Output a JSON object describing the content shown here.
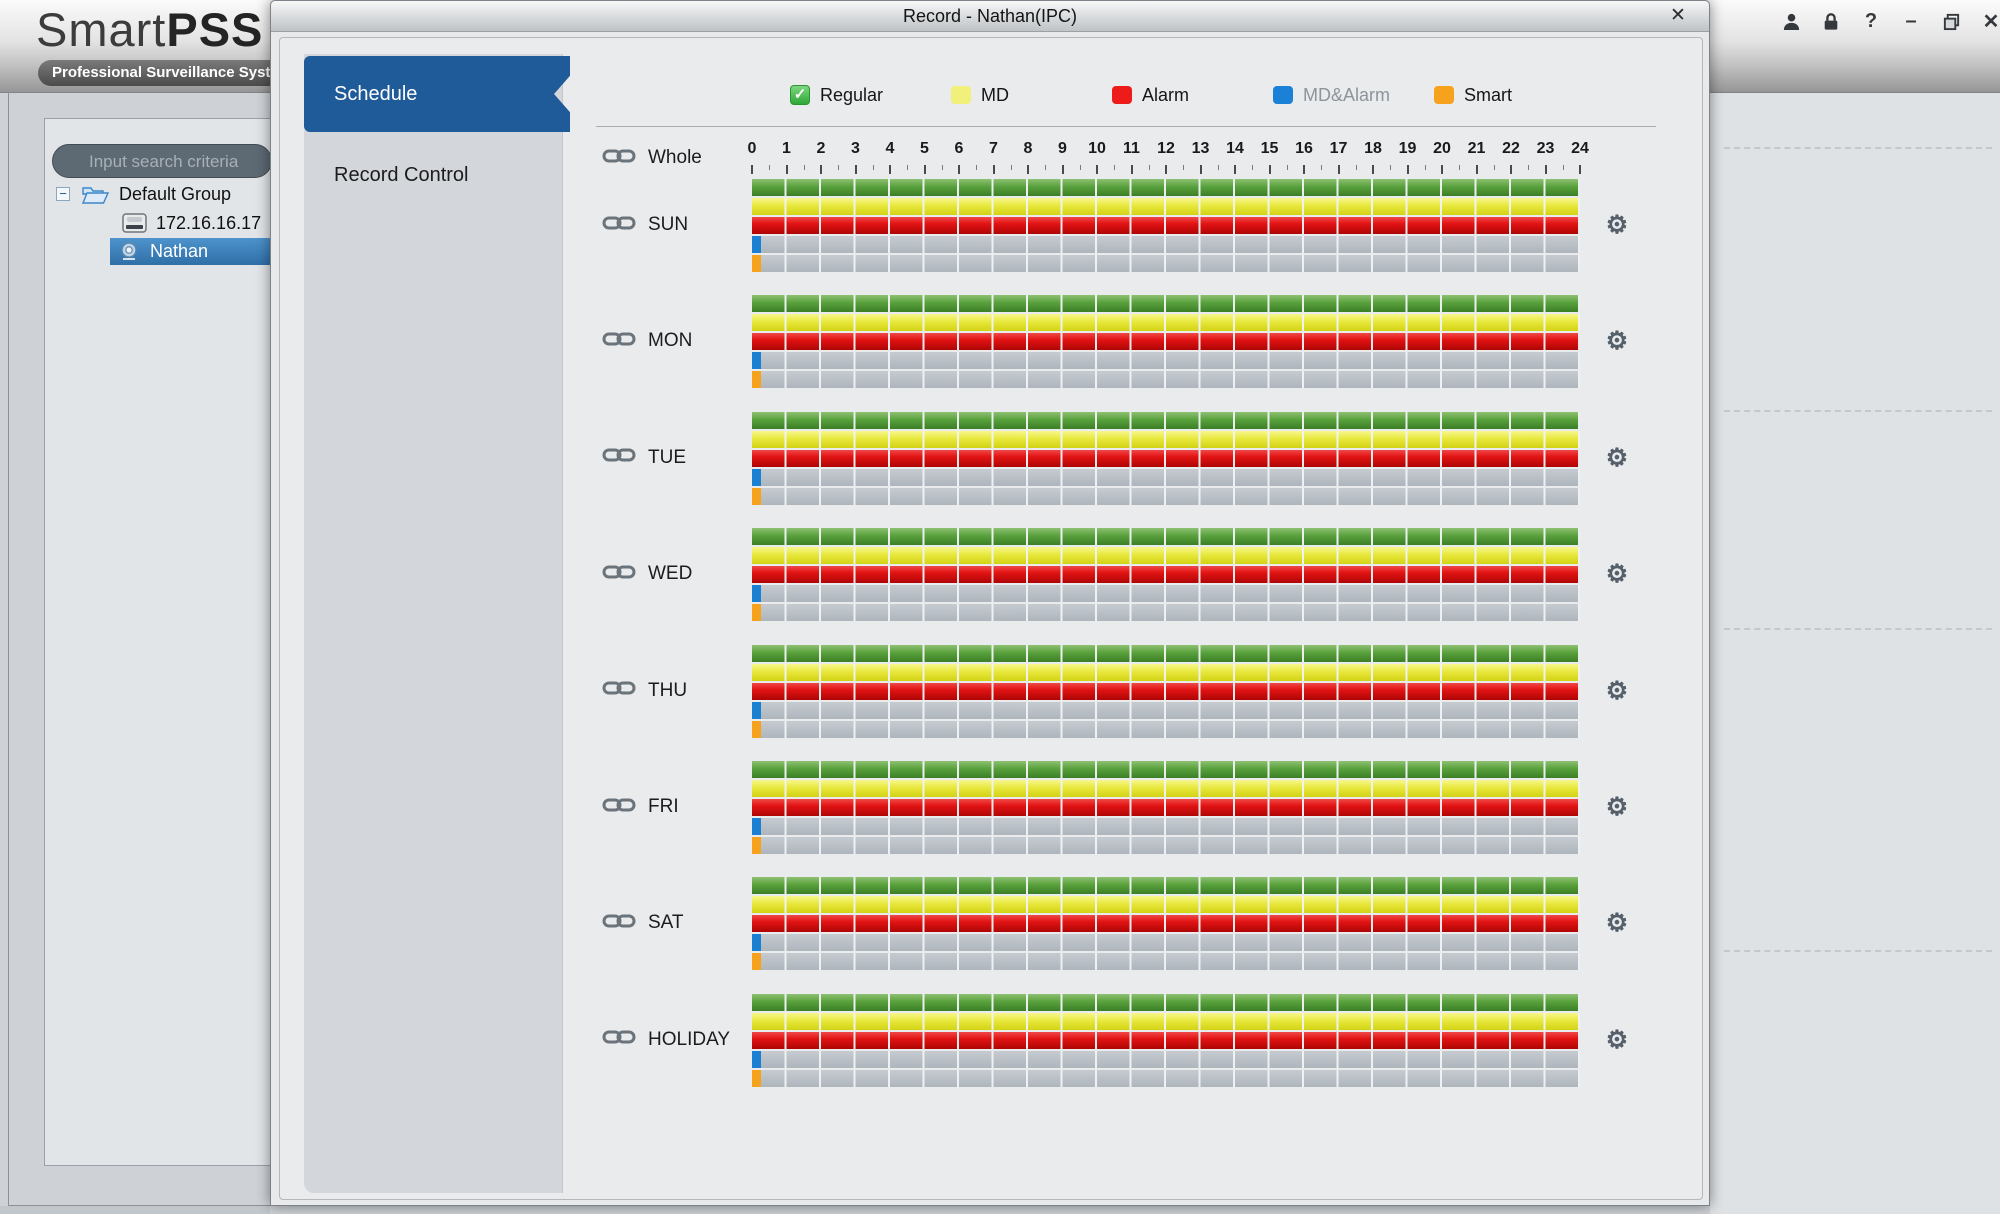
{
  "window": {
    "logo": {
      "brand_light": "Smart",
      "brand_bold": "PSS",
      "tagline": "Professional Surveillance Syst"
    },
    "controls": {
      "help_glyph": "?",
      "minimize_glyph": "–",
      "close_glyph": "✕"
    }
  },
  "sidebar": {
    "search_placeholder": "Input search criteria",
    "tree": {
      "group": "Default Group",
      "device": "172.16.16.17",
      "channel": "Nathan"
    }
  },
  "dialog": {
    "title": "Record - Nathan(IPC)",
    "close_glyph": "✕",
    "tabs": [
      {
        "label": "Schedule",
        "active": true
      },
      {
        "label": "Record Control",
        "active": false
      }
    ],
    "legend": [
      {
        "label": "Regular",
        "color": "#45b649",
        "checkbox": true,
        "check_glyph": "✓",
        "muted": false
      },
      {
        "label": "MD",
        "color": "#f0f07a",
        "checkbox": false,
        "muted": false
      },
      {
        "label": "Alarm",
        "color": "#ee1b1b",
        "checkbox": false,
        "muted": false
      },
      {
        "label": "MD&Alarm",
        "color": "#1b81d6",
        "checkbox": false,
        "muted": true
      },
      {
        "label": "Smart",
        "color": "#f6a21c",
        "checkbox": false,
        "muted": false
      }
    ],
    "timeline": {
      "whole_label": "Whole",
      "hours_start": 0,
      "hours_end": 24,
      "gear_glyph": "⚙",
      "track_order": [
        "regular",
        "md",
        "alarm",
        "md_alarm",
        "smart"
      ],
      "track_colors": {
        "regular": "#4e9437",
        "md": "#e0e02e",
        "alarm": "#d90f0f",
        "md_alarm": "#1b7fd2",
        "smart": "#f6a21c",
        "empty": "#b6bcc3"
      },
      "days": [
        {
          "label": "SUN",
          "regular": [
            [
              0,
              24
            ]
          ],
          "md": [
            [
              0,
              24
            ]
          ],
          "alarm": [
            [
              0,
              24
            ]
          ],
          "md_alarm": [
            [
              0,
              0.25
            ]
          ],
          "smart": [
            [
              0,
              0.25
            ]
          ]
        },
        {
          "label": "MON",
          "regular": [
            [
              0,
              24
            ]
          ],
          "md": [
            [
              0,
              24
            ]
          ],
          "alarm": [
            [
              0,
              24
            ]
          ],
          "md_alarm": [
            [
              0,
              0.25
            ]
          ],
          "smart": [
            [
              0,
              0.25
            ]
          ]
        },
        {
          "label": "TUE",
          "regular": [
            [
              0,
              24
            ]
          ],
          "md": [
            [
              0,
              24
            ]
          ],
          "alarm": [
            [
              0,
              24
            ]
          ],
          "md_alarm": [
            [
              0,
              0.25
            ]
          ],
          "smart": [
            [
              0,
              0.25
            ]
          ]
        },
        {
          "label": "WED",
          "regular": [
            [
              0,
              24
            ]
          ],
          "md": [
            [
              0,
              24
            ]
          ],
          "alarm": [
            [
              0,
              24
            ]
          ],
          "md_alarm": [
            [
              0,
              0.25
            ]
          ],
          "smart": [
            [
              0,
              0.25
            ]
          ]
        },
        {
          "label": "THU",
          "regular": [
            [
              0,
              24
            ]
          ],
          "md": [
            [
              0,
              24
            ]
          ],
          "alarm": [
            [
              0,
              24
            ]
          ],
          "md_alarm": [
            [
              0,
              0.25
            ]
          ],
          "smart": [
            [
              0,
              0.25
            ]
          ]
        },
        {
          "label": "FRI",
          "regular": [
            [
              0,
              24
            ]
          ],
          "md": [
            [
              0,
              24
            ]
          ],
          "alarm": [
            [
              0,
              24
            ]
          ],
          "md_alarm": [
            [
              0,
              0.25
            ]
          ],
          "smart": [
            [
              0,
              0.25
            ]
          ]
        },
        {
          "label": "SAT",
          "regular": [
            [
              0,
              24
            ]
          ],
          "md": [
            [
              0,
              24
            ]
          ],
          "alarm": [
            [
              0,
              24
            ]
          ],
          "md_alarm": [
            [
              0,
              0.25
            ]
          ],
          "smart": [
            [
              0,
              0.25
            ]
          ]
        },
        {
          "label": "HOLIDAY",
          "regular": [
            [
              0,
              24
            ]
          ],
          "md": [
            [
              0,
              24
            ]
          ],
          "alarm": [
            [
              0,
              24
            ]
          ],
          "md_alarm": [
            [
              0,
              0.25
            ]
          ],
          "smart": [
            [
              0,
              0.25
            ]
          ]
        }
      ]
    }
  }
}
